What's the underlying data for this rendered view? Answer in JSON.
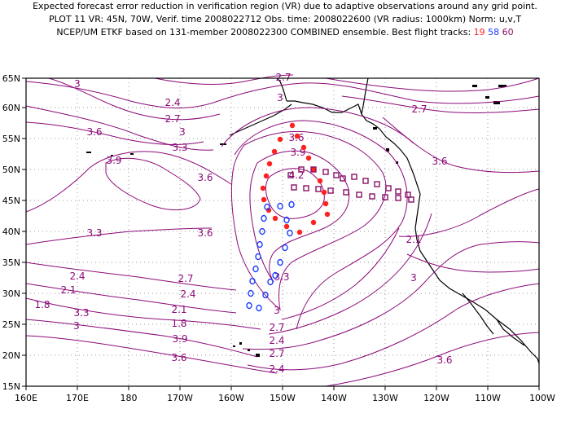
{
  "header": {
    "line1": "Expected forecast error reduction in verification region (VR) due to adaptive observations around any grid point.",
    "line2": "PLOT 11 VR: 45N, 70W, Verif. time 2008022712 Obs. time: 2008022600 (VR radius: 1000km) Norm: u,v,T",
    "line3_prefix": "NCEP/UM ETKF based on 131-member 2008022300 COMBINED ensemble.  Best flight tracks: ",
    "track_red": "19",
    "track_blue": "58",
    "track_purple": "60"
  },
  "colors": {
    "contour": "#8b0a78",
    "contour_label": "#8b0a78",
    "red_track": "#ff2020",
    "blue_track": "#1a3cff",
    "purple_track": "#880f66",
    "grid": "#999999",
    "coast": "#000000"
  },
  "map": {
    "x_ticks": [
      "160E",
      "170E",
      "180",
      "170W",
      "160W",
      "150W",
      "140W",
      "130W",
      "120W",
      "110W",
      "100W"
    ],
    "y_ticks": [
      "65N",
      "60N",
      "55N",
      "50N",
      "45N",
      "40N",
      "35N",
      "30N",
      "25N",
      "20N",
      "15N"
    ]
  },
  "contour_labels": [
    "3",
    "2.7",
    "2.4",
    "2.7",
    "3.6",
    "3",
    "3.3",
    "3.9",
    "3.6",
    "3.3",
    "3.6",
    "3.9",
    "4.2",
    "3.6",
    "3",
    "2.7",
    "2.4",
    "2.1",
    "1.8",
    "3.3",
    "3",
    "2.7",
    "2.4",
    "2.1",
    "1.8",
    "3.9",
    "3.6",
    "3.3",
    "3",
    "2.7",
    "2.4",
    "2.7",
    "2.4",
    "2.1",
    "3",
    "3.6"
  ]
}
